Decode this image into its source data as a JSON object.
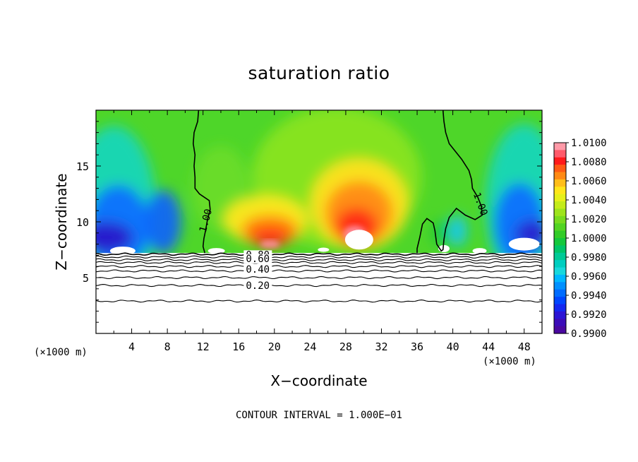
{
  "chart_data": {
    "type": "heatmap",
    "title": "saturation ratio",
    "xlabel": "X−coordinate",
    "ylabel": "Z−coordinate",
    "x_unit_left": "(×1000 m)",
    "x_unit_right": "(×1000 m)",
    "xlim": [
      0,
      50
    ],
    "ylim": [
      0,
      20
    ],
    "x_ticks": [
      4,
      8,
      12,
      16,
      20,
      24,
      28,
      32,
      36,
      40,
      44,
      48
    ],
    "y_ticks": [
      5,
      10,
      15
    ],
    "footer": "CONTOUR INTERVAL = 1.000E−01",
    "colorbar": {
      "min": 0.99,
      "max": 1.01,
      "labels": [
        "1.0100",
        "1.0080",
        "1.0060",
        "1.0040",
        "1.0020",
        "1.0000",
        "0.9980",
        "0.9960",
        "0.9940",
        "0.9920",
        "0.9900"
      ]
    },
    "contour_labels": [
      {
        "text": "1.00",
        "x": 12.3,
        "y": 9.0,
        "angle": -75
      },
      {
        "text": "1.00",
        "x": 42.3,
        "y": 12.5,
        "angle": 70
      },
      {
        "text": "0.80",
        "x": 16.8,
        "y": 6.75,
        "angle": 0
      },
      {
        "text": "0.60",
        "x": 16.8,
        "y": 6.4,
        "angle": 0
      },
      {
        "text": "0.40",
        "x": 16.8,
        "y": 5.45,
        "angle": 0
      },
      {
        "text": "0.20",
        "x": 16.8,
        "y": 4.0,
        "angle": 0
      }
    ],
    "lower_contour_levels": [
      7.1,
      6.85,
      6.6,
      6.35,
      6.0,
      5.6,
      5.0,
      4.3,
      2.9
    ],
    "plume_centers_x": [
      19,
      29.5,
      39
    ]
  }
}
